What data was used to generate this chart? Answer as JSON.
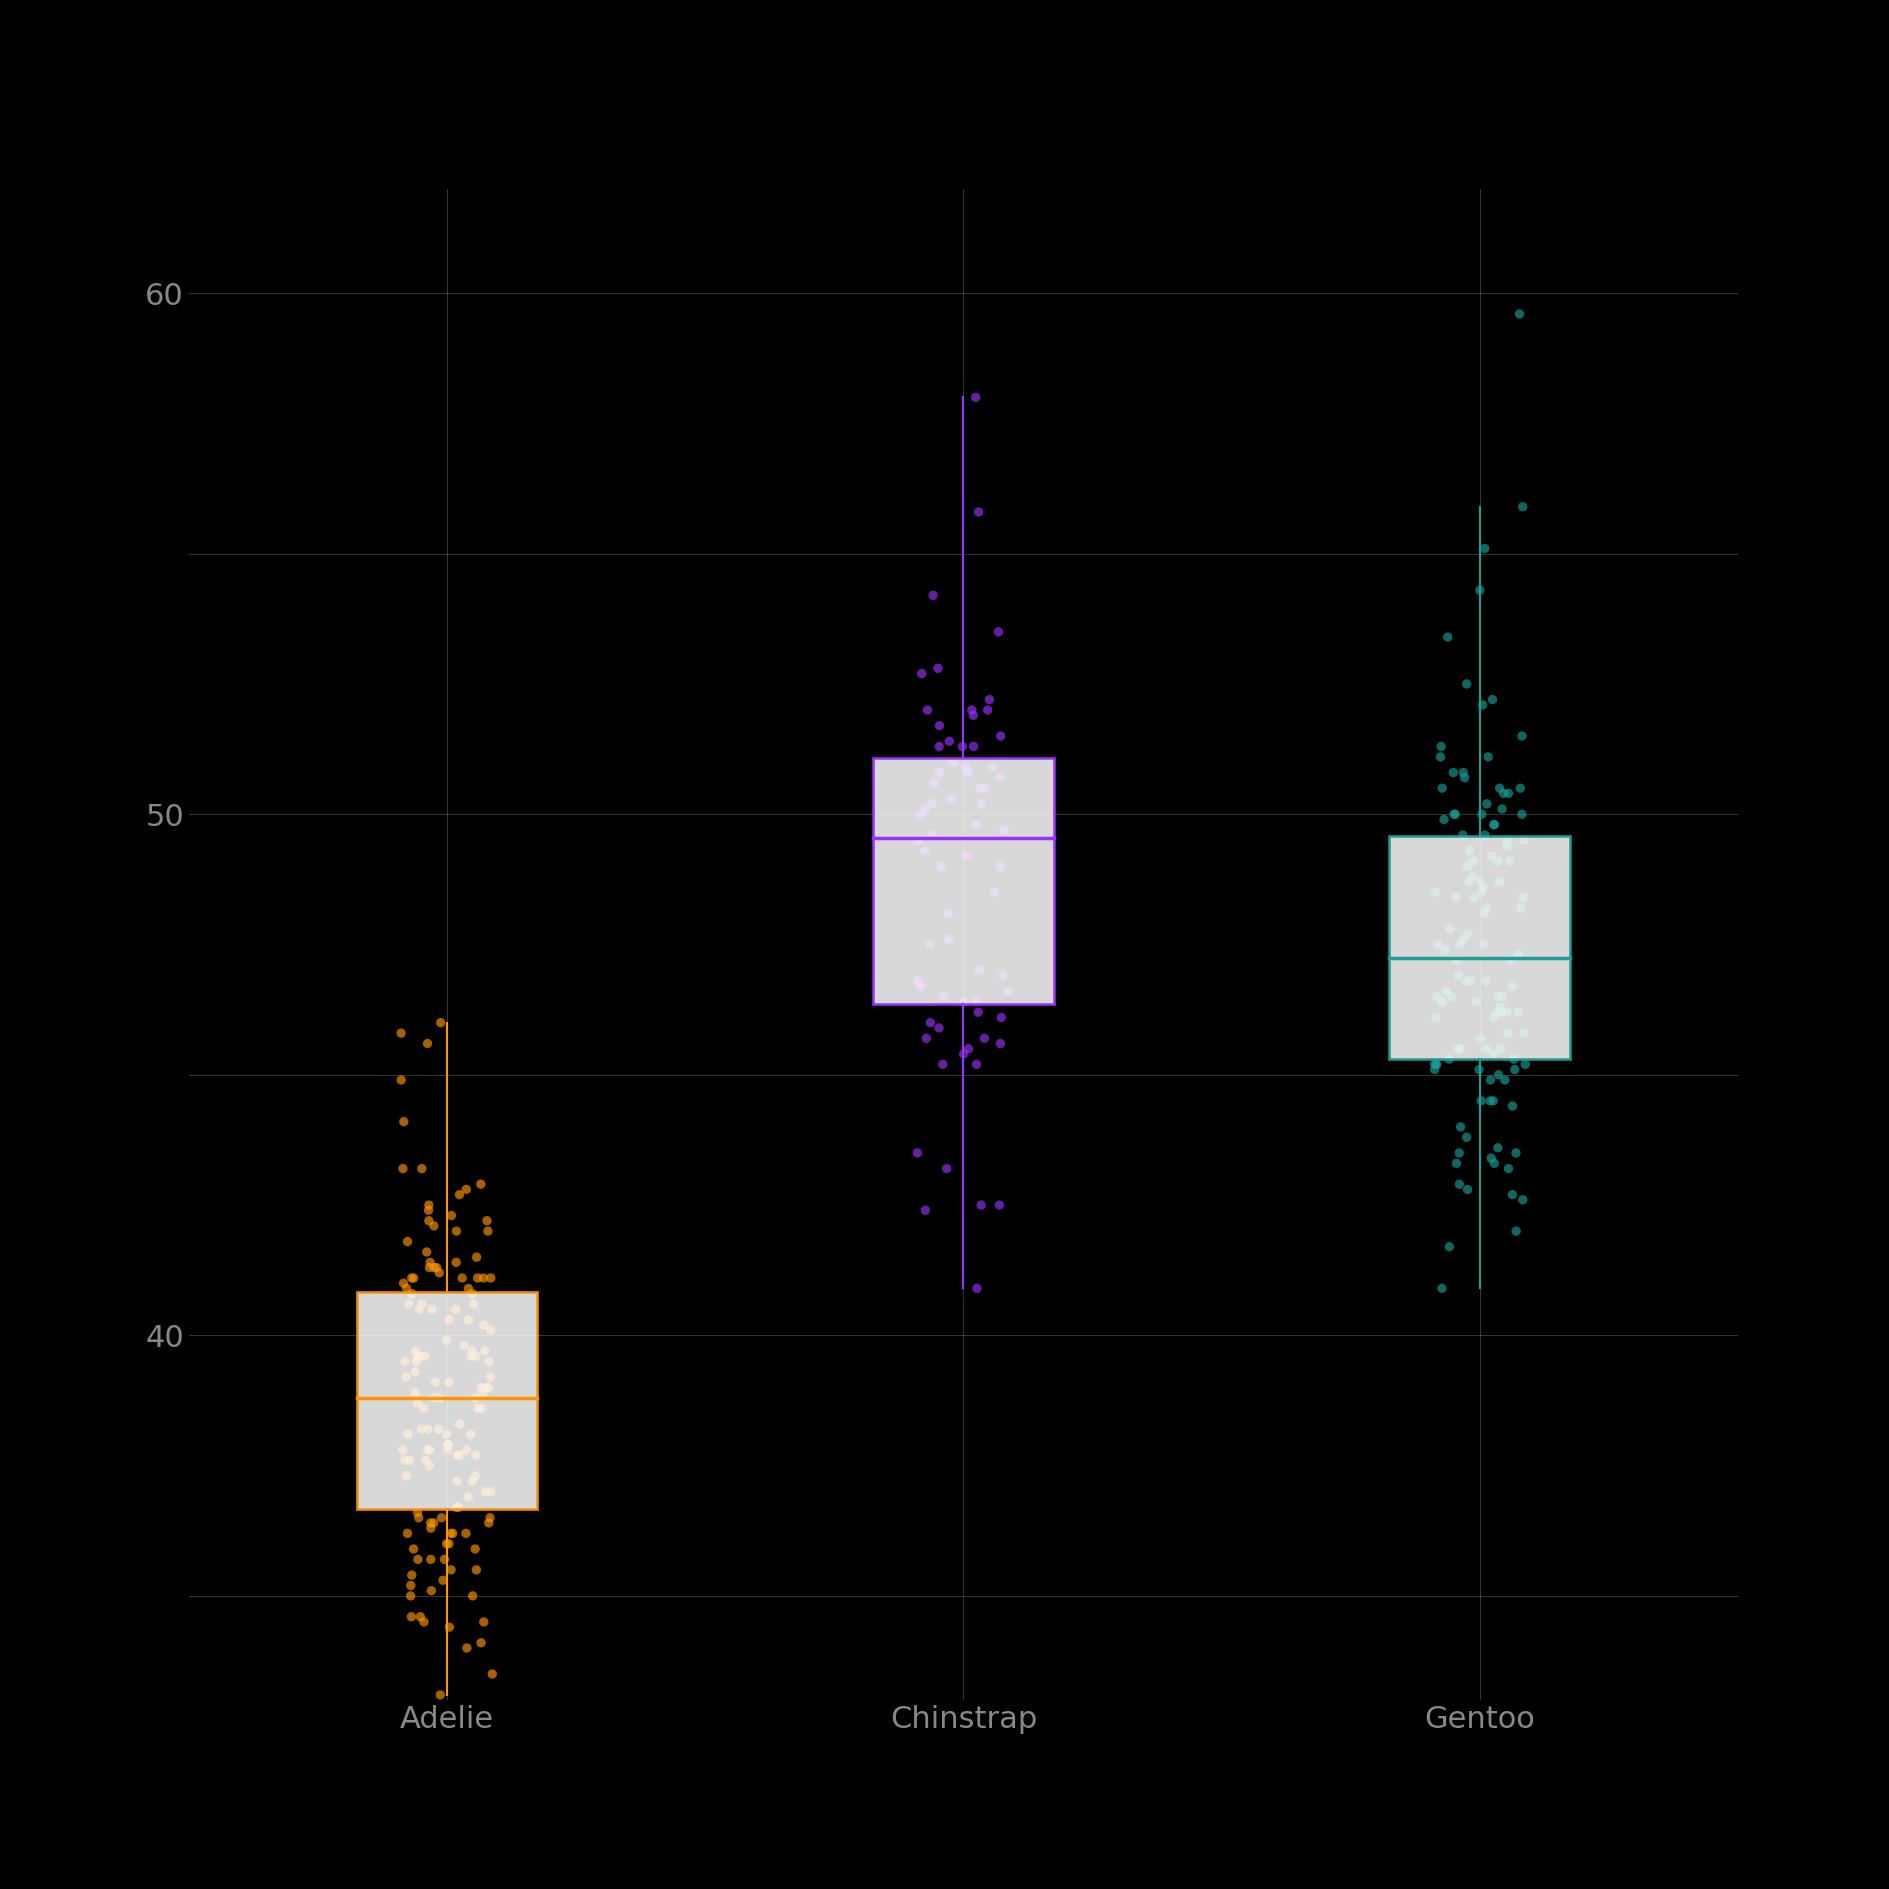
{
  "species": [
    "Adelie",
    "Chinstrap",
    "Gentoo"
  ],
  "colors": [
    "#FF9500",
    "#9B30FF",
    "#1A9E96"
  ],
  "background_color": "#000000",
  "grid_color": "#ffffff",
  "tick_label_color": "#888888",
  "adelie_bill_lengths": [
    39.1,
    39.5,
    40.3,
    36.7,
    39.3,
    38.9,
    39.2,
    34.1,
    42.0,
    37.8,
    37.8,
    41.1,
    38.6,
    34.6,
    36.6,
    38.7,
    42.5,
    34.4,
    46.0,
    37.8,
    37.7,
    35.9,
    38.2,
    38.8,
    35.3,
    40.6,
    40.5,
    37.9,
    40.5,
    39.5,
    37.2,
    39.5,
    40.9,
    36.4,
    39.2,
    38.8,
    42.2,
    37.6,
    39.8,
    36.5,
    40.8,
    36.0,
    44.1,
    37.0,
    39.6,
    41.1,
    37.5,
    36.0,
    42.3,
    39.6,
    40.1,
    35.0,
    42.0,
    34.5,
    41.4,
    39.0,
    40.6,
    36.5,
    37.6,
    35.7,
    41.3,
    37.6,
    41.1,
    36.4,
    41.6,
    35.5,
    41.1,
    35.9,
    41.8,
    33.5,
    39.7,
    39.6,
    45.8,
    35.5,
    42.8,
    40.9,
    37.2,
    36.2,
    42.1,
    34.6,
    42.9,
    36.7,
    35.1,
    37.3,
    41.3,
    36.3,
    36.9,
    38.3,
    38.9,
    35.7,
    41.1,
    34.0,
    39.6,
    36.2,
    40.8,
    38.1,
    40.3,
    33.1,
    43.2,
    35.0,
    41.0,
    37.7,
    37.8,
    37.9,
    39.7,
    38.6,
    38.2,
    38.1,
    43.2,
    38.1,
    45.6,
    39.7,
    42.2,
    39.6,
    42.7,
    38.6,
    37.3,
    35.7,
    41.1,
    36.2,
    37.7,
    40.2,
    41.4,
    35.2,
    40.6,
    38.8,
    41.5,
    39.0,
    44.9,
    37.8,
    41.2,
    38.2,
    35.4,
    40.5,
    39.0,
    36.4,
    39.1,
    36.2,
    41.3,
    37.0,
    36.5,
    34.5,
    39.9,
    42.4
  ],
  "chinstrap_bill_lengths": [
    46.5,
    50.0,
    51.3,
    45.4,
    52.7,
    45.2,
    46.1,
    51.3,
    46.0,
    51.3,
    46.6,
    51.7,
    47.0,
    52.0,
    45.9,
    50.5,
    50.3,
    58.0,
    46.4,
    49.2,
    42.4,
    48.5,
    43.2,
    50.6,
    46.7,
    52.0,
    50.5,
    49.5,
    46.4,
    52.8,
    40.9,
    54.2,
    42.5,
    51.0,
    49.7,
    47.5,
    47.6,
    52.0,
    46.9,
    53.5,
    49.0,
    46.2,
    50.9,
    45.5,
    50.9,
    50.8,
    50.1,
    49.0,
    51.5,
    49.8,
    48.1,
    51.4,
    45.7,
    50.7,
    42.5,
    52.2,
    45.2,
    49.3,
    50.2,
    45.6,
    51.9,
    46.8,
    45.7,
    55.8,
    43.5,
    49.6,
    50.8,
    50.2
  ],
  "gentoo_bill_lengths": [
    46.1,
    50.0,
    48.7,
    50.0,
    47.6,
    46.5,
    45.4,
    46.7,
    43.3,
    46.8,
    40.9,
    49.0,
    45.5,
    48.4,
    45.8,
    49.3,
    42.0,
    49.2,
    46.2,
    48.7,
    50.2,
    45.1,
    46.5,
    46.3,
    42.9,
    46.1,
    44.5,
    47.8,
    48.2,
    50.0,
    47.3,
    42.8,
    45.1,
    59.6,
    49.1,
    48.4,
    42.6,
    44.4,
    44.0,
    48.7,
    42.7,
    49.6,
    45.3,
    49.6,
    50.5,
    43.6,
    45.5,
    50.5,
    44.9,
    45.2,
    46.6,
    48.5,
    45.1,
    50.1,
    46.5,
    45.0,
    43.8,
    45.5,
    43.2,
    50.4,
    45.3,
    46.2,
    45.7,
    54.3,
    45.8,
    49.8,
    46.2,
    49.5,
    43.5,
    50.7,
    47.7,
    46.4,
    48.2,
    46.5,
    46.4,
    48.6,
    47.5,
    51.1,
    45.2,
    45.2,
    49.1,
    52.5,
    47.4,
    50.0,
    44.9,
    50.8,
    43.4,
    51.3,
    47.5,
    52.1,
    47.5,
    52.2,
    45.5,
    49.5,
    44.5,
    50.8,
    49.4,
    46.9,
    48.4,
    51.1,
    48.5,
    55.9,
    47.2,
    49.1,
    46.8,
    41.7,
    53.4,
    43.3,
    48.1,
    50.5,
    49.8,
    43.5,
    51.5,
    46.2,
    55.1,
    44.5,
    48.8,
    47.2,
    46.8,
    50.4,
    45.2,
    49.9
  ],
  "ylim": [
    33,
    62
  ],
  "yticks_major": [
    40,
    50,
    60
  ],
  "yticks_minor": [
    35,
    40,
    45,
    50,
    55,
    60
  ],
  "box_width": 0.35,
  "jitter_strength": 0.09,
  "point_alpha": 0.65,
  "point_size": 45,
  "figsize": [
    18.89,
    18.89
  ],
  "dpi": 100,
  "tick_fontsize": 22
}
